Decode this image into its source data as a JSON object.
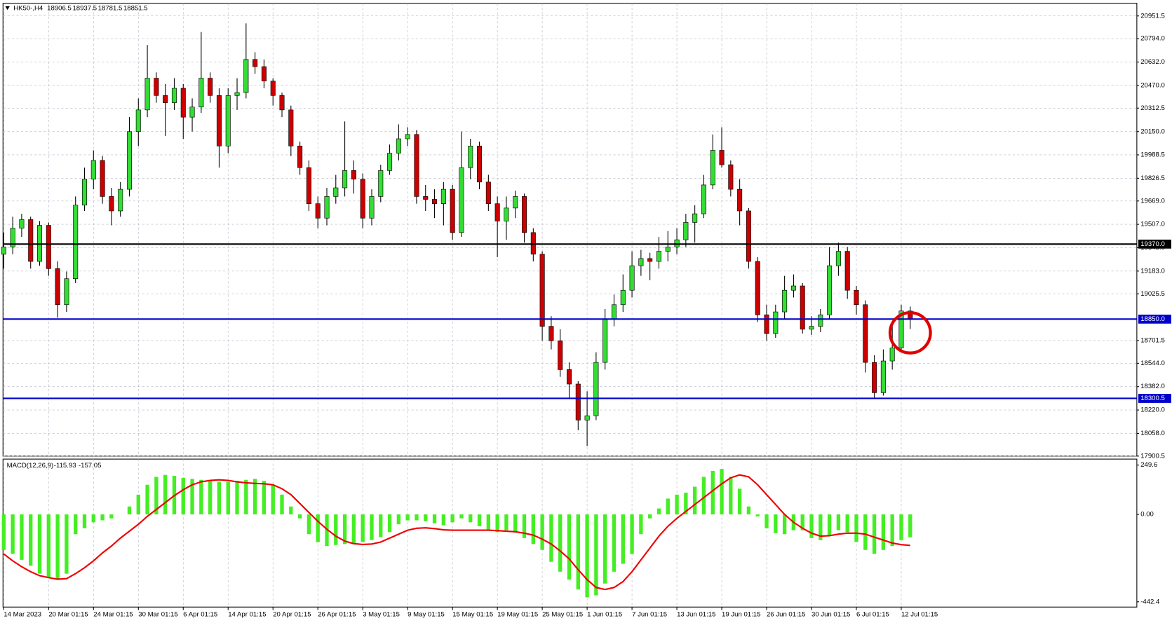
{
  "chart_data": [
    {
      "type": "candlestick",
      "title": "HK50-,H4",
      "categories": [
        "14 Mar 2023",
        null,
        null,
        null,
        null,
        "20 Mar 01:15",
        null,
        null,
        null,
        null,
        "24 Mar 01:15",
        null,
        null,
        null,
        null,
        "30 Mar 01:15",
        null,
        null,
        null,
        null,
        "6 Apr 01:15",
        null,
        null,
        null,
        null,
        "14 Apr 01:15",
        null,
        null,
        null,
        null,
        "20 Apr 01:15",
        null,
        null,
        null,
        null,
        "26 Apr 01:15",
        null,
        null,
        null,
        null,
        "3 May 01:15",
        null,
        null,
        null,
        null,
        "9 May 01:15",
        null,
        null,
        null,
        null,
        "15 May 01:15",
        null,
        null,
        null,
        null,
        "19 May 01:15",
        null,
        null,
        null,
        null,
        "25 May 01:15",
        null,
        null,
        null,
        null,
        "1 Jun 01:15",
        null,
        null,
        null,
        null,
        "7 Jun 01:15",
        null,
        null,
        null,
        null,
        "13 Jun 01:15",
        null,
        null,
        null,
        null,
        "19 Jun 01:15",
        null,
        null,
        null,
        null,
        "26 Jun 01:15",
        null,
        null,
        null,
        null,
        "30 Jun 01:15",
        null,
        null,
        null,
        null,
        "6 Jul 01:15",
        null,
        null,
        null,
        null,
        "12 Jul 01:15",
        null
      ],
      "ohlc": [
        [
          19300,
          19450,
          19200,
          19350
        ],
        [
          19350,
          19560,
          19300,
          19480
        ],
        [
          19480,
          19580,
          19420,
          19540
        ],
        [
          19540,
          19560,
          19200,
          19250
        ],
        [
          19250,
          19530,
          19220,
          19500
        ],
        [
          19500,
          19520,
          19150,
          19200
        ],
        [
          19200,
          19250,
          18860,
          18950
        ],
        [
          18950,
          19180,
          18900,
          19130
        ],
        [
          19130,
          19700,
          19100,
          19640
        ],
        [
          19640,
          19900,
          19600,
          19820
        ],
        [
          19820,
          20020,
          19750,
          19950
        ],
        [
          19950,
          19980,
          19650,
          19700
        ],
        [
          19700,
          19760,
          19500,
          19600
        ],
        [
          19600,
          19800,
          19560,
          19750
        ],
        [
          19750,
          20250,
          19700,
          20150
        ],
        [
          20150,
          20380,
          20050,
          20300
        ],
        [
          20300,
          20750,
          20250,
          20520
        ],
        [
          20520,
          20560,
          20350,
          20400
        ],
        [
          20400,
          20480,
          20120,
          20350
        ],
        [
          20350,
          20520,
          20300,
          20450
        ],
        [
          20450,
          20480,
          20100,
          20250
        ],
        [
          20250,
          20380,
          20150,
          20320
        ],
        [
          20320,
          20840,
          20280,
          20520
        ],
        [
          20520,
          20560,
          20350,
          20400
        ],
        [
          20400,
          20450,
          19900,
          20050
        ],
        [
          20050,
          20450,
          20000,
          20400
        ],
        [
          20400,
          20520,
          20300,
          20420
        ],
        [
          20420,
          20900,
          20380,
          20650
        ],
        [
          20650,
          20700,
          20550,
          20600
        ],
        [
          20600,
          20650,
          20450,
          20500
        ],
        [
          20500,
          20520,
          20330,
          20400
        ],
        [
          20400,
          20420,
          20250,
          20300
        ],
        [
          20300,
          20330,
          19980,
          20050
        ],
        [
          20050,
          20080,
          19850,
          19900
        ],
        [
          19900,
          19950,
          19600,
          19650
        ],
        [
          19650,
          19700,
          19480,
          19550
        ],
        [
          19550,
          19760,
          19500,
          19700
        ],
        [
          19700,
          19850,
          19650,
          19760
        ],
        [
          19760,
          20220,
          19700,
          19880
        ],
        [
          19880,
          19950,
          19720,
          19820
        ],
        [
          19820,
          19860,
          19480,
          19550
        ],
        [
          19550,
          19750,
          19500,
          19700
        ],
        [
          19700,
          19920,
          19660,
          19880
        ],
        [
          19880,
          20060,
          19850,
          20000
        ],
        [
          20000,
          20200,
          19950,
          20100
        ],
        [
          20100,
          20180,
          20050,
          20130
        ],
        [
          20130,
          20160,
          19650,
          19700
        ],
        [
          19700,
          19780,
          19600,
          19680
        ],
        [
          19680,
          19750,
          19550,
          19650
        ],
        [
          19650,
          19800,
          19500,
          19750
        ],
        [
          19750,
          19780,
          19400,
          19450
        ],
        [
          19450,
          20150,
          19420,
          19900
        ],
        [
          19900,
          20100,
          19820,
          20050
        ],
        [
          20050,
          20080,
          19750,
          19800
        ],
        [
          19800,
          19850,
          19600,
          19650
        ],
        [
          19650,
          19700,
          19280,
          19530
        ],
        [
          19530,
          19700,
          19400,
          19620
        ],
        [
          19620,
          19740,
          19550,
          19700
        ],
        [
          19700,
          19720,
          19380,
          19450
        ],
        [
          19450,
          19480,
          19250,
          19300
        ],
        [
          19300,
          19320,
          18700,
          18800
        ],
        [
          18800,
          18870,
          18640,
          18700
        ],
        [
          18700,
          18780,
          18450,
          18500
        ],
        [
          18500,
          18550,
          18300,
          18400
        ],
        [
          18400,
          18420,
          18080,
          18150
        ],
        [
          18150,
          18350,
          17970,
          18180
        ],
        [
          18180,
          18620,
          18150,
          18550
        ],
        [
          18550,
          18920,
          18500,
          18850
        ],
        [
          18850,
          19020,
          18800,
          18950
        ],
        [
          18950,
          19160,
          18900,
          19050
        ],
        [
          19050,
          19320,
          19000,
          19220
        ],
        [
          19220,
          19330,
          19150,
          19270
        ],
        [
          19270,
          19310,
          19120,
          19250
        ],
        [
          19250,
          19420,
          19200,
          19320
        ],
        [
          19320,
          19460,
          19250,
          19350
        ],
        [
          19350,
          19480,
          19300,
          19400
        ],
        [
          19400,
          19580,
          19350,
          19520
        ],
        [
          19520,
          19640,
          19380,
          19580
        ],
        [
          19580,
          19850,
          19550,
          19780
        ],
        [
          19780,
          20130,
          19750,
          20020
        ],
        [
          20020,
          20180,
          19900,
          19920
        ],
        [
          19920,
          19950,
          19700,
          19750
        ],
        [
          19750,
          19820,
          19500,
          19600
        ],
        [
          19600,
          19620,
          19200,
          19250
        ],
        [
          19250,
          19280,
          18830,
          18880
        ],
        [
          18880,
          18950,
          18700,
          18750
        ],
        [
          18750,
          18950,
          18720,
          18900
        ],
        [
          18900,
          19150,
          18850,
          19050
        ],
        [
          19050,
          19160,
          19000,
          19080
        ],
        [
          19080,
          19100,
          18750,
          18780
        ],
        [
          18780,
          18870,
          18740,
          18800
        ],
        [
          18800,
          18920,
          18760,
          18880
        ],
        [
          18880,
          19350,
          18850,
          19220
        ],
        [
          19220,
          19380,
          19150,
          19320
        ],
        [
          19320,
          19350,
          18990,
          19050
        ],
        [
          19050,
          19080,
          18880,
          18950
        ],
        [
          18950,
          18980,
          18480,
          18550
        ],
        [
          18550,
          18600,
          18300,
          18340
        ],
        [
          18340,
          18640,
          18320,
          18560
        ],
        [
          18560,
          18820,
          18500,
          18650
        ],
        [
          18650,
          18950,
          18620,
          18906.5
        ],
        [
          18906.5,
          18937.5,
          18781.5,
          18851.5
        ]
      ],
      "up_color": "#33dd33",
      "down_color": "#cc0000",
      "ylim": [
        17900.5,
        21039.5
      ],
      "yticks": [
        20951.5,
        {
          "value": 20794,
          "label": "20794.0"
        },
        {
          "value": 20632,
          "label": "20632.0"
        },
        {
          "value": 20470,
          "label": "20470.0"
        },
        20312.5,
        {
          "value": 20150,
          "label": "20150.0"
        },
        19988.5,
        19826.5,
        {
          "value": 19669,
          "label": "19669.0"
        },
        {
          "value": 19507,
          "label": "19507.0"
        },
        {
          "value": 19345,
          "label": "19345.0"
        },
        {
          "value": 19183,
          "label": "19183.0"
        },
        19025.5,
        18701.5,
        {
          "value": 18544,
          "label": "18544.0"
        },
        {
          "value": 18382,
          "label": "18382.0"
        },
        {
          "value": 18220,
          "label": "18220.0"
        },
        {
          "value": 18058,
          "label": "18058.0"
        },
        17900.5
      ],
      "hlines": [
        {
          "value": 19370,
          "label": "19370.0",
          "color": "#000000"
        },
        {
          "value": 18850,
          "label": "18850.0",
          "color": "#0000cc"
        },
        {
          "value": 18300.5,
          "label": "18300.5",
          "color": "#0000cc"
        }
      ],
      "grid": true
    },
    {
      "type": "macd",
      "title": "MACD(12,26,9)",
      "histogram": {
        "color": "#44ee22",
        "values": [
          -180,
          -200,
          -230,
          -260,
          -300,
          -320,
          -330,
          -300,
          -100,
          -70,
          -40,
          -30,
          -20,
          0,
          40,
          100,
          150,
          190,
          200,
          195,
          185,
          180,
          175,
          170,
          165,
          165,
          170,
          175,
          180,
          170,
          150,
          100,
          40,
          -20,
          -100,
          -140,
          -160,
          -155,
          -150,
          -145,
          -140,
          -130,
          -115,
          -90,
          -50,
          -30,
          -30,
          -35,
          -45,
          -55,
          -40,
          -20,
          -40,
          -60,
          -80,
          -90,
          -80,
          -90,
          -120,
          -150,
          -180,
          -240,
          -290,
          -330,
          -380,
          -420,
          -410,
          -350,
          -290,
          -250,
          -200,
          -100,
          -20,
          30,
          80,
          100,
          110,
          140,
          190,
          220,
          230,
          190,
          130,
          40,
          -10,
          -70,
          -95,
          -100,
          -80,
          -80,
          -120,
          -130,
          -110,
          -80,
          -90,
          -140,
          -180,
          -200,
          -180,
          -160,
          -130,
          -115.93
        ]
      },
      "signal": {
        "color": "#ee0000",
        "values": [
          -200,
          -235,
          -265,
          -290,
          -310,
          -320,
          -328,
          -325,
          -300,
          -270,
          -235,
          -195,
          -160,
          -120,
          -85,
          -50,
          -10,
          25,
          60,
          95,
          125,
          150,
          165,
          172,
          175,
          172,
          165,
          160,
          157,
          155,
          150,
          130,
          100,
          55,
          10,
          -35,
          -75,
          -110,
          -135,
          -148,
          -152,
          -150,
          -140,
          -120,
          -100,
          -80,
          -70,
          -68,
          -72,
          -78,
          -80,
          -80,
          -80,
          -80,
          -80,
          -82,
          -85,
          -88,
          -95,
          -105,
          -125,
          -150,
          -185,
          -225,
          -280,
          -330,
          -370,
          -380,
          -370,
          -340,
          -290,
          -230,
          -170,
          -110,
          -60,
          -20,
          15,
          50,
          85,
          120,
          155,
          185,
          200,
          190,
          150,
          100,
          50,
          0,
          -40,
          -70,
          -95,
          -110,
          -108,
          -100,
          -95,
          -95,
          -100,
          -115,
          -130,
          -145,
          -153,
          -157.05
        ]
      },
      "ylim": [
        -469,
        280
      ],
      "yticks": [
        249.6,
        {
          "value": 0,
          "label": "0.00"
        },
        -442.4
      ]
    }
  ]
}
